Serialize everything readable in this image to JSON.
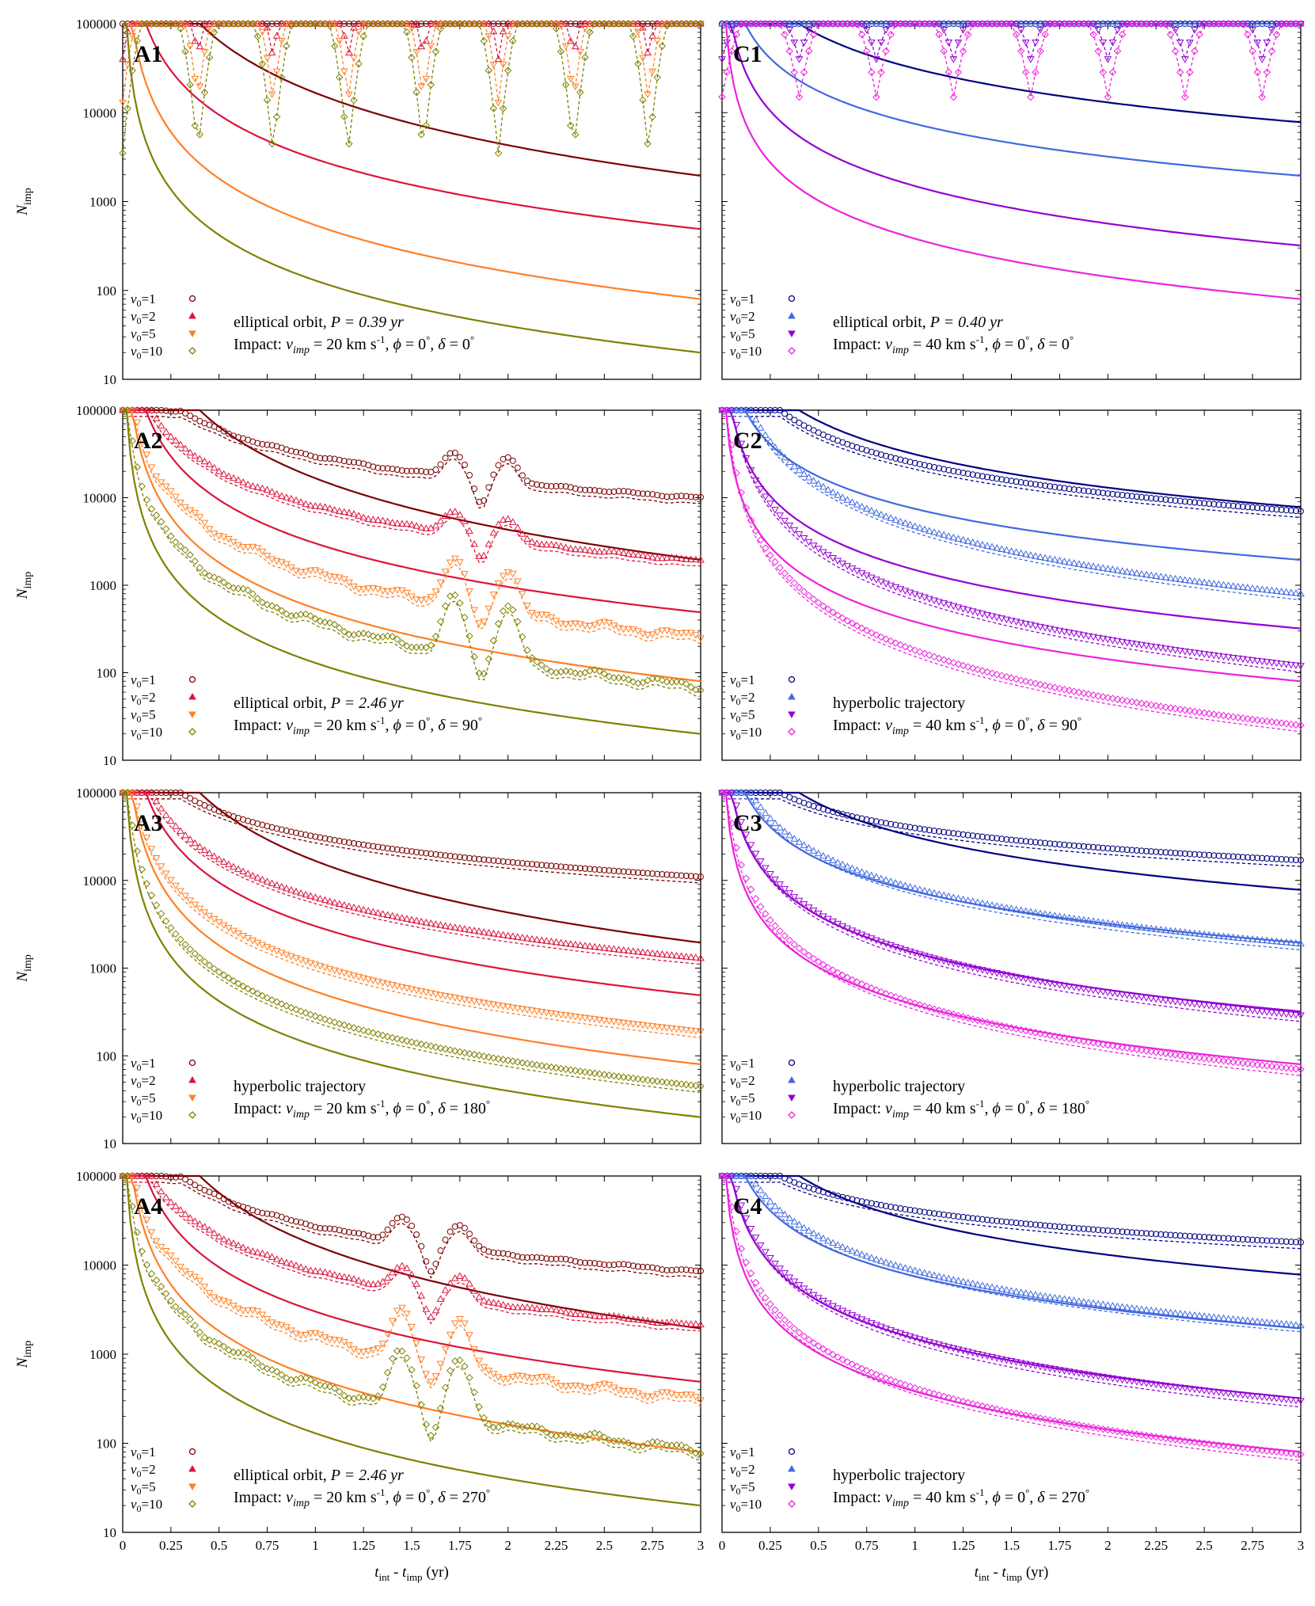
{
  "figure": {
    "xlabel_parts": {
      "t": "t",
      "sub1": "int",
      "minus": " - ",
      "t2": "t",
      "sub2": "imp",
      "unit": " (yr)"
    },
    "ylabel_parts": {
      "n": "N",
      "sub": "imp"
    }
  },
  "colors": {
    "A": [
      "#7b0000",
      "#dc143c",
      "#ff7f24",
      "#808000"
    ],
    "C": [
      "#000080",
      "#4169e1",
      "#9400d3",
      "#ee22dd"
    ]
  },
  "chart_data": [
    {
      "id": "A1",
      "type": "line",
      "column": "A",
      "row": 0,
      "orbit": "elliptical orbit, ",
      "period": "P = 0.39 yr",
      "impact": {
        "v": "20 km s",
        "phi": "0",
        "delta": "0"
      },
      "shape": "periodic",
      "period_yr": 0.39,
      "legend": [
        "v0=1",
        "v0=2",
        "v0=5",
        "v0=10"
      ],
      "xlim": [
        0,
        3
      ],
      "ylim": [
        10,
        100000
      ],
      "yscale": "log",
      "xticks": [
        "0",
        "0.25",
        "0.5",
        "0.75",
        "1",
        "1.25",
        "1.5",
        "1.75",
        "2",
        "2.25",
        "2.5",
        "2.75",
        "3"
      ],
      "yticks": [
        "10",
        "100",
        "1000",
        "10000",
        "100000"
      ],
      "analytic_end": [
        1950,
        490,
        80,
        20
      ],
      "dip_min": [
        100000,
        40000,
        13000,
        3500
      ]
    },
    {
      "id": "A2",
      "type": "line",
      "column": "A",
      "row": 1,
      "orbit": "elliptical orbit, ",
      "period": "P = 2.46 yr",
      "impact": {
        "v": "20 km s",
        "phi": "0",
        "delta": "90"
      },
      "shape": "bumps",
      "bump_centers": [
        1.72,
        2.0
      ],
      "legend": [
        "v0=1",
        "v0=2",
        "v0=5",
        "v0=10"
      ],
      "xlim": [
        0,
        3
      ],
      "ylim": [
        10,
        100000
      ],
      "yscale": "log",
      "xticks": [
        "0",
        "0.25",
        "0.5",
        "0.75",
        "1",
        "1.25",
        "1.5",
        "1.75",
        "2",
        "2.25",
        "2.5",
        "2.75",
        "3"
      ],
      "yticks": [
        "10",
        "100",
        "1000",
        "10000",
        "100000"
      ],
      "analytic_end": [
        1950,
        490,
        80,
        20
      ],
      "sim_end": [
        10000,
        1900,
        260,
        70
      ]
    },
    {
      "id": "A3",
      "type": "line",
      "column": "A",
      "row": 2,
      "orbit": "hyperbolic trajectory",
      "period": "",
      "impact": {
        "v": "20 km s",
        "phi": "0",
        "delta": "180"
      },
      "shape": "smooth",
      "legend": [
        "v0=1",
        "v0=2",
        "v0=5",
        "v0=10"
      ],
      "xlim": [
        0,
        3
      ],
      "ylim": [
        10,
        100000
      ],
      "yscale": "log",
      "xticks": [
        "0",
        "0.25",
        "0.5",
        "0.75",
        "1",
        "1.25",
        "1.5",
        "1.75",
        "2",
        "2.25",
        "2.5",
        "2.75",
        "3"
      ],
      "yticks": [
        "10",
        "100",
        "1000",
        "10000",
        "100000"
      ],
      "analytic_end": [
        1950,
        490,
        80,
        20
      ],
      "sim_end": [
        11000,
        1300,
        190,
        45
      ]
    },
    {
      "id": "A4",
      "type": "line",
      "column": "A",
      "row": 3,
      "orbit": "elliptical orbit, ",
      "period": "P = 2.46 yr",
      "impact": {
        "v": "20 km s",
        "phi": "0",
        "delta": "270"
      },
      "shape": "bumps",
      "bump_centers": [
        1.45,
        1.75
      ],
      "legend": [
        "v0=1",
        "v0=2",
        "v0=5",
        "v0=10"
      ],
      "xlim": [
        0,
        3
      ],
      "ylim": [
        10,
        100000
      ],
      "yscale": "log",
      "xticks": [
        "0",
        "0.25",
        "0.5",
        "0.75",
        "1",
        "1.25",
        "1.5",
        "1.75",
        "2",
        "2.25",
        "2.5",
        "2.75",
        "3"
      ],
      "yticks": [
        "10",
        "100",
        "1000",
        "10000",
        "100000"
      ],
      "analytic_end": [
        1950,
        490,
        80,
        20
      ],
      "sim_end": [
        8500,
        2100,
        320,
        85
      ]
    },
    {
      "id": "C1",
      "type": "line",
      "column": "C",
      "row": 0,
      "orbit": "elliptical orbit, ",
      "period": "P = 0.40 yr",
      "impact": {
        "v": "40 km s",
        "phi": "0",
        "delta": "0"
      },
      "shape": "periodic",
      "period_yr": 0.4,
      "legend": [
        "v0=1",
        "v0=2",
        "v0=5",
        "v0=10"
      ],
      "xlim": [
        0,
        3
      ],
      "ylim": [
        10,
        100000
      ],
      "yscale": "log",
      "xticks": [
        "0",
        "0.25",
        "0.5",
        "0.75",
        "1",
        "1.25",
        "1.5",
        "1.75",
        "2",
        "2.25",
        "2.5",
        "2.75",
        "3"
      ],
      "yticks": [
        "10",
        "100",
        "1000",
        "10000",
        "100000"
      ],
      "analytic_end": [
        7800,
        1950,
        320,
        80
      ],
      "dip_min": [
        100000,
        100000,
        40000,
        15000
      ]
    },
    {
      "id": "C2",
      "type": "line",
      "column": "C",
      "row": 1,
      "orbit": "hyperbolic trajectory",
      "period": "",
      "impact": {
        "v": "40 km s",
        "phi": "0",
        "delta": "90"
      },
      "shape": "smooth",
      "legend": [
        "v0=1",
        "v0=2",
        "v0=5",
        "v0=10"
      ],
      "xlim": [
        0,
        3
      ],
      "ylim": [
        10,
        100000
      ],
      "yscale": "log",
      "xticks": [
        "0",
        "0.25",
        "0.5",
        "0.75",
        "1",
        "1.25",
        "1.5",
        "1.75",
        "2",
        "2.25",
        "2.5",
        "2.75",
        "3"
      ],
      "yticks": [
        "10",
        "100",
        "1000",
        "10000",
        "100000"
      ],
      "analytic_end": [
        7800,
        1950,
        320,
        80
      ],
      "sim_end": [
        7000,
        800,
        120,
        25
      ]
    },
    {
      "id": "C3",
      "type": "line",
      "column": "C",
      "row": 2,
      "orbit": "hyperbolic trajectory",
      "period": "",
      "impact": {
        "v": "40 km s",
        "phi": "0",
        "delta": "180"
      },
      "shape": "smooth",
      "legend": [
        "v0=1",
        "v0=2",
        "v0=5",
        "v0=10"
      ],
      "xlim": [
        0,
        3
      ],
      "ylim": [
        10,
        100000
      ],
      "yscale": "log",
      "xticks": [
        "0",
        "0.25",
        "0.5",
        "0.75",
        "1",
        "1.25",
        "1.5",
        "1.75",
        "2",
        "2.25",
        "2.5",
        "2.75",
        "3"
      ],
      "yticks": [
        "10",
        "100",
        "1000",
        "10000",
        "100000"
      ],
      "analytic_end": [
        7800,
        1950,
        320,
        80
      ],
      "sim_end": [
        17000,
        1900,
        290,
        70
      ]
    },
    {
      "id": "C4",
      "type": "line",
      "column": "C",
      "row": 3,
      "orbit": "hyperbolic trajectory",
      "period": "",
      "impact": {
        "v": "40 km s",
        "phi": "0",
        "delta": "270"
      },
      "shape": "smooth",
      "legend": [
        "v0=1",
        "v0=2",
        "v0=5",
        "v0=10"
      ],
      "xlim": [
        0,
        3
      ],
      "ylim": [
        10,
        100000
      ],
      "yscale": "log",
      "xticks": [
        "0",
        "0.25",
        "0.5",
        "0.75",
        "1",
        "1.25",
        "1.5",
        "1.75",
        "2",
        "2.25",
        "2.5",
        "2.75",
        "3"
      ],
      "yticks": [
        "10",
        "100",
        "1000",
        "10000",
        "100000"
      ],
      "analytic_end": [
        7800,
        1950,
        320,
        80
      ],
      "sim_end": [
        18000,
        2100,
        300,
        75
      ]
    }
  ]
}
